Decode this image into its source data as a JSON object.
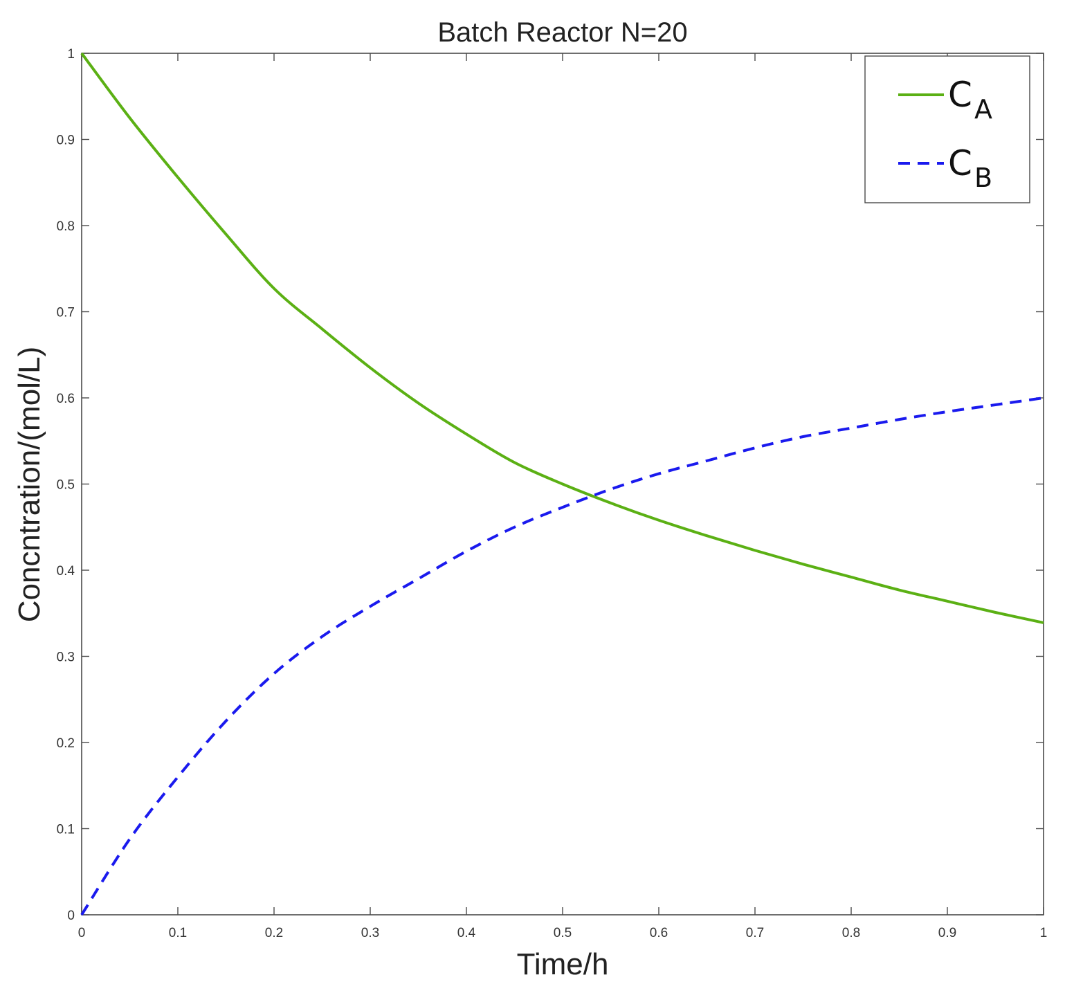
{
  "chart_data": {
    "type": "line",
    "title": "Batch Reactor N=20",
    "xlabel": "Time/h",
    "ylabel": "Concntration/(mol/L)",
    "xlim": [
      0,
      1
    ],
    "ylim": [
      0,
      1
    ],
    "xticks": [
      0,
      0.1,
      0.2,
      0.3,
      0.4,
      0.5,
      0.6,
      0.7,
      0.8,
      0.9,
      1
    ],
    "xtick_labels": [
      "0",
      "0.1",
      "0.2",
      "0.3",
      "0.4",
      "0.5",
      "0.6",
      "0.7",
      "0.8",
      "0.9",
      "1"
    ],
    "yticks": [
      0,
      0.1,
      0.2,
      0.3,
      0.4,
      0.5,
      0.6,
      0.7,
      0.8,
      0.9,
      1
    ],
    "ytick_labels": [
      "0",
      "0.1",
      "0.2",
      "0.3",
      "0.4",
      "0.5",
      "0.6",
      "0.7",
      "0.8",
      "0.9",
      "1"
    ],
    "grid": false,
    "legend_position": "top-right",
    "x": [
      0,
      0.05,
      0.1,
      0.15,
      0.2,
      0.25,
      0.3,
      0.35,
      0.4,
      0.45,
      0.5,
      0.55,
      0.6,
      0.65,
      0.7,
      0.75,
      0.8,
      0.85,
      0.9,
      0.95,
      1
    ],
    "series": [
      {
        "name": "C_A",
        "legend_main": "C",
        "legend_sub": "A",
        "color": "#5bb014",
        "style": "solid",
        "values": [
          1.0,
          0.925,
          0.856,
          0.79,
          0.727,
          0.68,
          0.635,
          0.594,
          0.558,
          0.525,
          0.5,
          0.478,
          0.458,
          0.44,
          0.423,
          0.407,
          0.392,
          0.377,
          0.364,
          0.351,
          0.339
        ]
      },
      {
        "name": "C_B",
        "legend_main": "C",
        "legend_sub": "B",
        "color": "#1a1aee",
        "style": "dashed",
        "values": [
          0.0,
          0.088,
          0.16,
          0.225,
          0.28,
          0.323,
          0.358,
          0.39,
          0.422,
          0.45,
          0.473,
          0.494,
          0.512,
          0.527,
          0.542,
          0.555,
          0.565,
          0.575,
          0.584,
          0.592,
          0.6
        ]
      }
    ]
  }
}
